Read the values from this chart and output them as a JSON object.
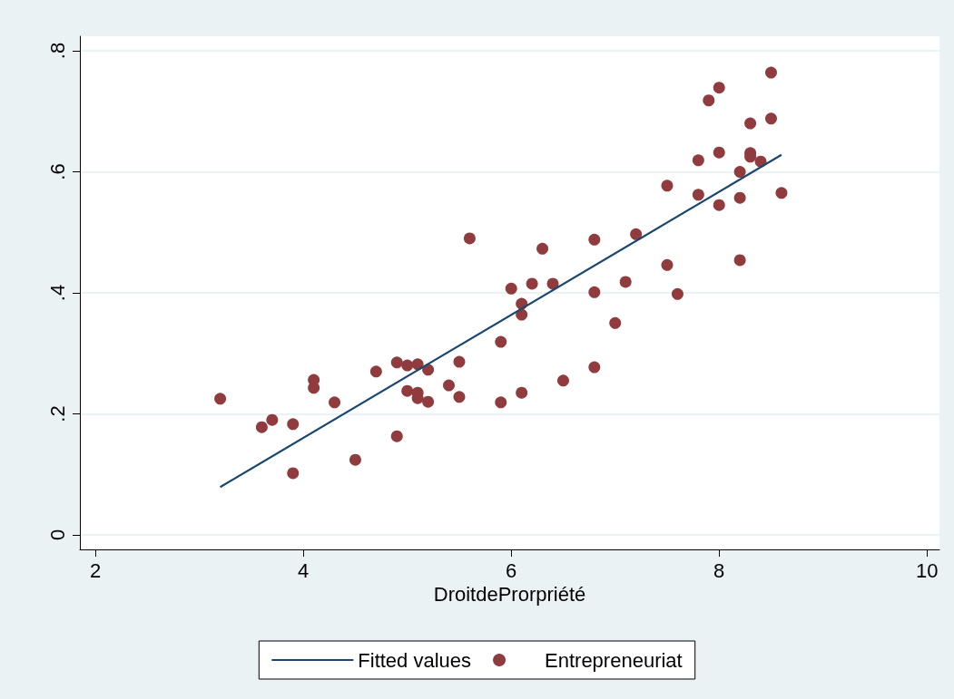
{
  "chart_data": {
    "type": "scatter",
    "xlabel": "DroitdeProrpriété",
    "xlim": [
      1.85,
      10.12
    ],
    "xticks": [
      2,
      4,
      6,
      8,
      10
    ],
    "ylim": [
      -0.024,
      0.824
    ],
    "yticks": [
      {
        "value": 0,
        "label": "0"
      },
      {
        "value": 0.2,
        "label": ".2"
      },
      {
        "value": 0.4,
        "label": ".4"
      },
      {
        "value": 0.6,
        "label": ".6"
      },
      {
        "value": 0.8,
        "label": ".8"
      }
    ],
    "grid": "y",
    "legend": "bottom",
    "series": [
      {
        "name": "Fitted values",
        "type": "line",
        "color": "#1a476f",
        "line_style": "solid",
        "x": [
          3.2,
          8.6
        ],
        "values": [
          0.079,
          0.628
        ]
      },
      {
        "name": "Entrepreneuriat",
        "marker": "circle",
        "color": "#903c3f",
        "x": [
          3.2,
          3.6,
          3.7,
          3.9,
          3.9,
          4.1,
          4.1,
          4.3,
          4.5,
          4.7,
          4.9,
          4.9,
          5.0,
          5.0,
          5.1,
          5.1,
          5.1,
          5.2,
          5.2,
          5.4,
          5.5,
          5.5,
          5.6,
          5.9,
          5.9,
          6.0,
          6.1,
          6.1,
          6.1,
          6.2,
          6.3,
          6.4,
          6.5,
          6.8,
          6.8,
          6.8,
          7.0,
          7.1,
          7.2,
          7.5,
          7.5,
          7.6,
          7.8,
          7.8,
          7.9,
          8.0,
          8.0,
          8.0,
          8.2,
          8.2,
          8.2,
          8.3,
          8.3,
          8.3,
          8.4,
          8.5,
          8.5,
          8.6
        ],
        "values": [
          0.225,
          0.178,
          0.19,
          0.183,
          0.102,
          0.256,
          0.243,
          0.219,
          0.124,
          0.27,
          0.285,
          0.163,
          0.28,
          0.238,
          0.282,
          0.235,
          0.226,
          0.273,
          0.22,
          0.247,
          0.286,
          0.228,
          0.49,
          0.319,
          0.219,
          0.407,
          0.382,
          0.364,
          0.235,
          0.415,
          0.473,
          0.415,
          0.255,
          0.488,
          0.401,
          0.277,
          0.35,
          0.418,
          0.497,
          0.577,
          0.446,
          0.398,
          0.619,
          0.562,
          0.718,
          0.739,
          0.632,
          0.545,
          0.6,
          0.557,
          0.454,
          0.68,
          0.631,
          0.625,
          0.617,
          0.764,
          0.688,
          0.565
        ]
      }
    ]
  }
}
